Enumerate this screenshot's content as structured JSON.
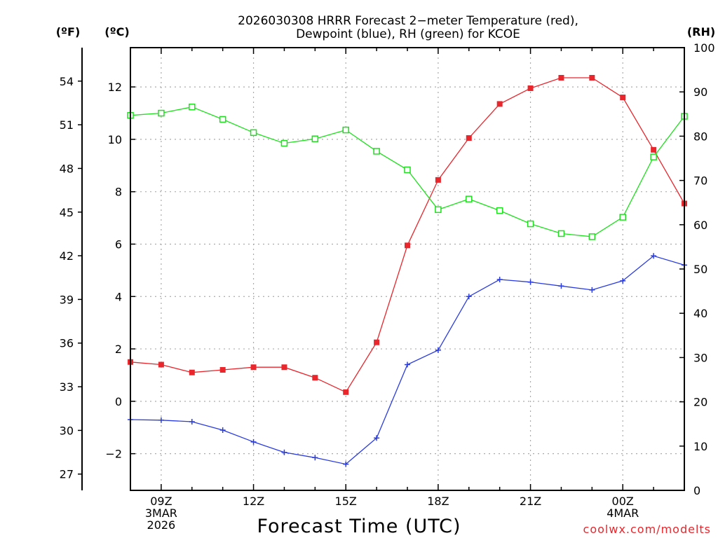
{
  "chart_data": {
    "type": "line",
    "title": "2026030308 HRRR Forecast 2−meter Temperature (red),",
    "subtitle": "Dewpoint (blue), RH (green) for KCOE",
    "xlabel": "Forecast Time (UTC)",
    "credit": "coolwx.com/modelts",
    "unit_labels": {
      "fahrenheit": "(ºF)",
      "celsius": "(ºC)",
      "rh": "(RH)"
    },
    "x": [
      8,
      9,
      10,
      11,
      12,
      13,
      14,
      15,
      16,
      17,
      18,
      19,
      20,
      21,
      22,
      23,
      24,
      25,
      26
    ],
    "xlim": [
      8,
      26
    ],
    "x_ticks": [
      {
        "x": 9,
        "lines": [
          "09Z",
          "3MAR",
          "2026"
        ]
      },
      {
        "x": 12,
        "lines": [
          "12Z"
        ]
      },
      {
        "x": 15,
        "lines": [
          "15Z"
        ]
      },
      {
        "x": 18,
        "lines": [
          "18Z"
        ]
      },
      {
        "x": 21,
        "lines": [
          "21Z"
        ]
      },
      {
        "x": 24,
        "lines": [
          "00Z",
          "4MAR"
        ]
      }
    ],
    "y_celsius": {
      "ylim": [
        -3.4,
        13.5
      ],
      "ticks": [
        -2,
        0,
        2,
        4,
        6,
        8,
        10,
        12
      ],
      "tick_labels": [
        "−2",
        "0",
        "2",
        "4",
        "6",
        "8",
        "10",
        "12"
      ]
    },
    "y_fahrenheit": {
      "ticks": [
        27,
        30,
        33,
        36,
        39,
        42,
        45,
        48,
        51,
        54
      ],
      "tick_labels": [
        "27",
        "30",
        "33",
        "36",
        "39",
        "42",
        "45",
        "48",
        "51",
        "54"
      ]
    },
    "y_rh": {
      "ylim": [
        0,
        100
      ],
      "ticks": [
        0,
        10,
        20,
        30,
        40,
        50,
        60,
        70,
        80,
        90,
        100
      ],
      "tick_labels": [
        "0",
        "10",
        "20",
        "30",
        "40",
        "50",
        "60",
        "70",
        "80",
        "90",
        "100"
      ]
    },
    "series": [
      {
        "name": "Temperature",
        "color": "#e8262c",
        "marker": "filled-square",
        "axis": "celsius",
        "values": [
          1.5,
          1.4,
          1.1,
          1.2,
          1.3,
          1.3,
          0.9,
          0.35,
          2.25,
          5.95,
          8.45,
          10.05,
          11.35,
          11.95,
          12.35,
          12.35,
          11.6,
          9.6,
          7.55
        ]
      },
      {
        "name": "Dewpoint",
        "color": "#2a3ce0",
        "marker": "plus",
        "axis": "celsius",
        "values": [
          -0.7,
          -0.72,
          -0.78,
          -1.1,
          -1.55,
          -1.95,
          -2.15,
          -2.4,
          -1.4,
          1.4,
          1.95,
          4.0,
          4.65,
          4.55,
          4.4,
          4.25,
          4.6,
          5.55,
          5.2
        ]
      },
      {
        "name": "RH",
        "color": "#1ee01e",
        "marker": "hollow-square",
        "axis": "rh",
        "values": [
          84.7,
          85.2,
          86.6,
          83.8,
          80.8,
          78.4,
          79.4,
          81.4,
          76.6,
          72.4,
          63.4,
          65.8,
          63.2,
          60.2,
          58,
          57.3,
          61.7,
          75.3,
          84.5
        ]
      }
    ]
  }
}
